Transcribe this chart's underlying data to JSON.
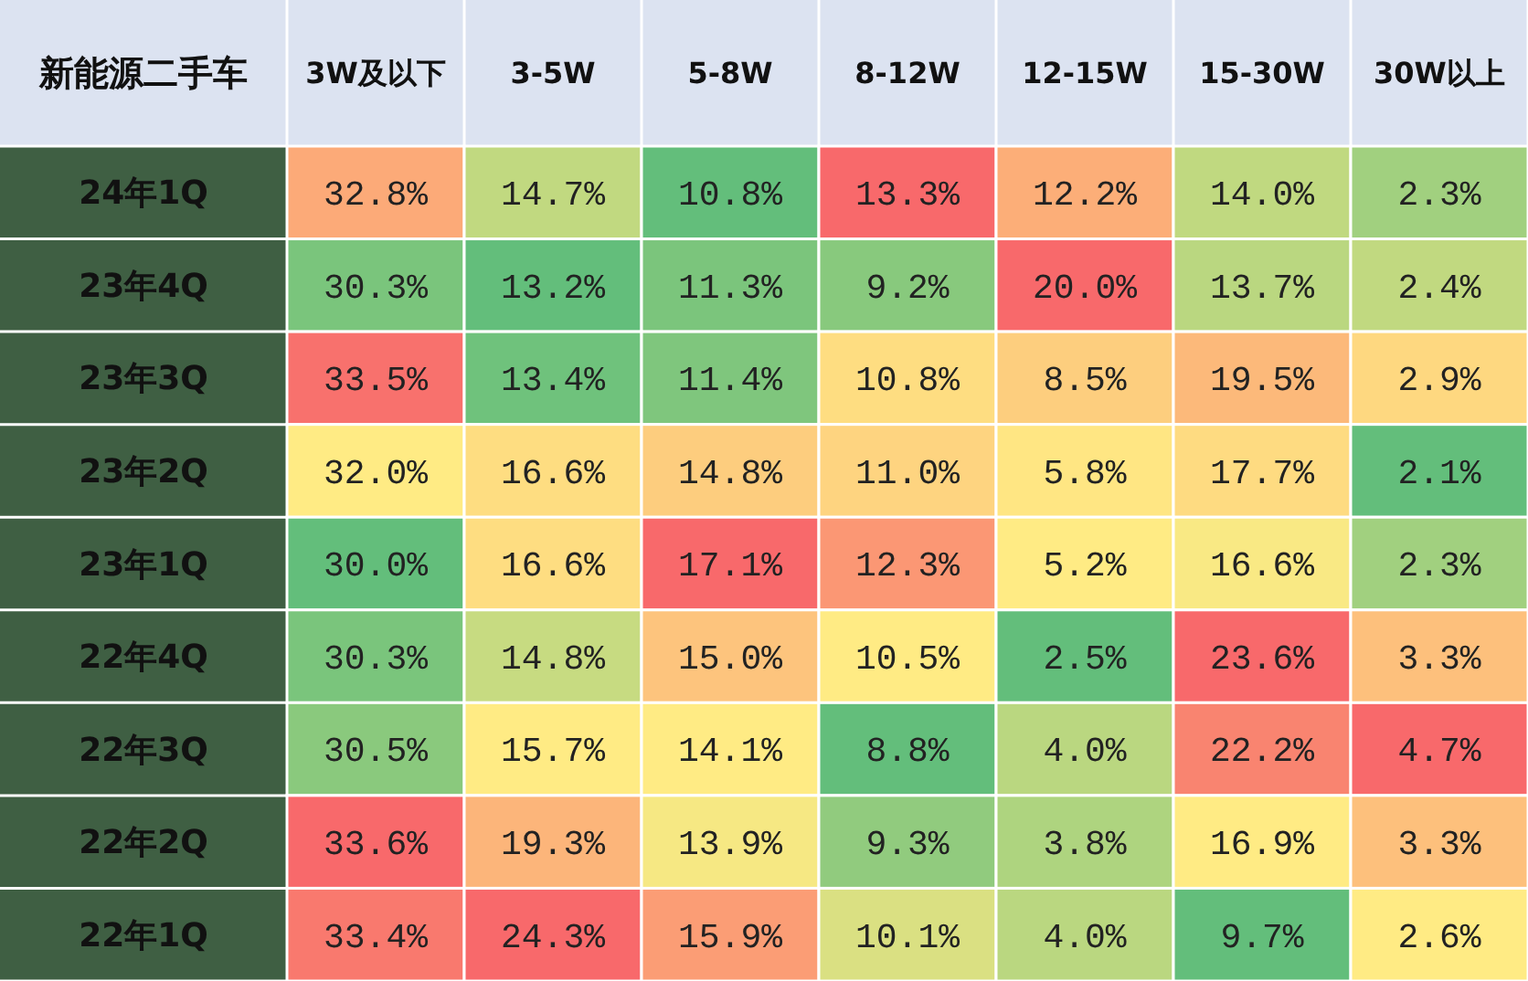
{
  "chart_data": {
    "type": "heatmap",
    "ylabel": "新能源二手车",
    "categories": [
      "3W及以下",
      "3-5W",
      "5-8W",
      "8-12W",
      "12-15W",
      "15-30W",
      "30W以上"
    ],
    "y_categories": [
      "24年1Q",
      "23年4Q",
      "23年3Q",
      "23年2Q",
      "23年1Q",
      "22年4Q",
      "22年3Q",
      "22年2Q",
      "22年1Q"
    ],
    "cells": [
      [
        32.8,
        14.7,
        10.8,
        13.3,
        12.2,
        14.0,
        2.3
      ],
      [
        30.3,
        13.2,
        11.3,
        9.2,
        20.0,
        13.7,
        2.4
      ],
      [
        33.5,
        13.4,
        11.4,
        10.8,
        8.5,
        19.5,
        2.9
      ],
      [
        32.0,
        16.6,
        14.8,
        11.0,
        5.8,
        17.7,
        2.1
      ],
      [
        30.0,
        16.6,
        17.1,
        12.3,
        5.2,
        16.6,
        2.3
      ],
      [
        30.3,
        14.8,
        15.0,
        10.5,
        2.5,
        23.6,
        3.3
      ],
      [
        30.5,
        15.7,
        14.1,
        8.8,
        4.0,
        22.2,
        4.7
      ],
      [
        33.6,
        19.3,
        13.9,
        9.3,
        3.8,
        16.9,
        3.3
      ],
      [
        33.4,
        24.3,
        15.9,
        10.1,
        4.0,
        9.7,
        2.6
      ]
    ],
    "cell_labels": [
      [
        "32.8%",
        "14.7%",
        "10.8%",
        "13.3%",
        "12.2%",
        "14.0%",
        "2.3%"
      ],
      [
        "30.3%",
        "13.2%",
        "11.3%",
        "9.2%",
        "20.0%",
        "13.7%",
        "2.4%"
      ],
      [
        "33.5%",
        "13.4%",
        "11.4%",
        "10.8%",
        "8.5%",
        "19.5%",
        "2.9%"
      ],
      [
        "32.0%",
        "16.6%",
        "14.8%",
        "11.0%",
        "5.8%",
        "17.7%",
        "2.1%"
      ],
      [
        "30.0%",
        "16.6%",
        "17.1%",
        "12.3%",
        "5.2%",
        "16.6%",
        "2.3%"
      ],
      [
        "30.3%",
        "14.8%",
        "15.0%",
        "10.5%",
        "2.5%",
        "23.6%",
        "3.3%"
      ],
      [
        "30.5%",
        "15.7%",
        "14.1%",
        "8.8%",
        "4.0%",
        "22.2%",
        "4.7%"
      ],
      [
        "33.6%",
        "19.3%",
        "13.9%",
        "9.3%",
        "3.8%",
        "16.9%",
        "3.3%"
      ],
      [
        "33.4%",
        "24.3%",
        "15.9%",
        "10.1%",
        "4.0%",
        "9.7%",
        "2.6%"
      ]
    ],
    "data_labels": true
  }
}
